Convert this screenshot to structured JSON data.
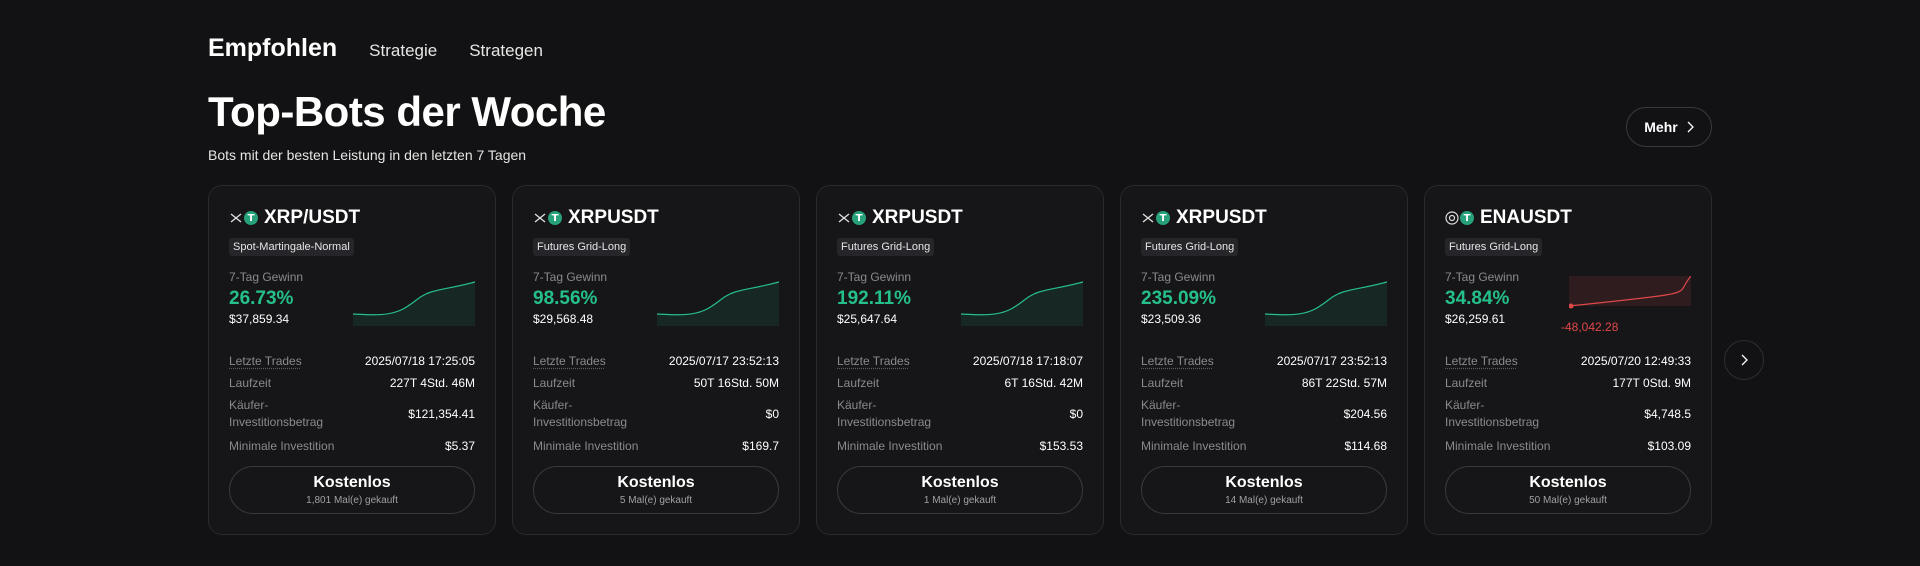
{
  "nav": {
    "active": "Empfohlen",
    "tabs": [
      "Strategie",
      "Strategen"
    ]
  },
  "header": {
    "title": "Top-Bots der Woche",
    "subtitle": "Bots mit der besten Leistung in den letzten 7 Tagen",
    "more_label": "Mehr"
  },
  "labels": {
    "profit": "7-Tag Gewinn",
    "last_trades": "Letzte Trades",
    "runtime": "Laufzeit",
    "buyer_investment": "Käufer-Investitionsbetrag",
    "min_investment": "Minimale Investition"
  },
  "colors": {
    "positive": "#25c08a",
    "negative": "#e0484a",
    "tether": "#26a17b"
  },
  "cards": [
    {
      "pair": "XRP/USDT",
      "strategy": "Spot-Martingale-Normal",
      "profit_pct": "26.73%",
      "profit_amt": "$37,859.34",
      "trend": "up",
      "last_trade": "2025/07/18 17:25:05",
      "runtime": "227T 4Std. 46M",
      "buyer_investment": "$121,354.41",
      "min_investment": "$5.37",
      "btn_label": "Kostenlos",
      "btn_sub": "1,801 Mal(e) gekauft",
      "icon": "xrp-icon"
    },
    {
      "pair": "XRPUSDT",
      "strategy": "Futures Grid-Long",
      "profit_pct": "98.56%",
      "profit_amt": "$29,568.48",
      "trend": "up",
      "last_trade": "2025/07/17 23:52:13",
      "runtime": "50T 16Std. 50M",
      "buyer_investment": "$0",
      "min_investment": "$169.7",
      "btn_label": "Kostenlos",
      "btn_sub": "5 Mal(e) gekauft",
      "icon": "xrp-icon"
    },
    {
      "pair": "XRPUSDT",
      "strategy": "Futures Grid-Long",
      "profit_pct": "192.11%",
      "profit_amt": "$25,647.64",
      "trend": "up",
      "last_trade": "2025/07/18 17:18:07",
      "runtime": "6T 16Std. 42M",
      "buyer_investment": "$0",
      "min_investment": "$153.53",
      "btn_label": "Kostenlos",
      "btn_sub": "1 Mal(e) gekauft",
      "icon": "xrp-icon"
    },
    {
      "pair": "XRPUSDT",
      "strategy": "Futures Grid-Long",
      "profit_pct": "235.09%",
      "profit_amt": "$23,509.36",
      "trend": "up",
      "last_trade": "2025/07/17 23:52:13",
      "runtime": "86T 22Std. 57M",
      "buyer_investment": "$204.56",
      "min_investment": "$114.68",
      "btn_label": "Kostenlos",
      "btn_sub": "14 Mal(e) gekauft",
      "icon": "xrp-icon"
    },
    {
      "pair": "ENAUSDT",
      "strategy": "Futures Grid-Long",
      "profit_pct": "34.84%",
      "profit_amt": "$26,259.61",
      "trend": "down",
      "loss_label": "-48,042.28",
      "last_trade": "2025/07/20 12:49:33",
      "runtime": "177T 0Std. 9M",
      "buyer_investment": "$4,748.5",
      "min_investment": "$103.09",
      "btn_label": "Kostenlos",
      "btn_sub": "50 Mal(e) gekauft",
      "icon": "ena-icon"
    }
  ]
}
